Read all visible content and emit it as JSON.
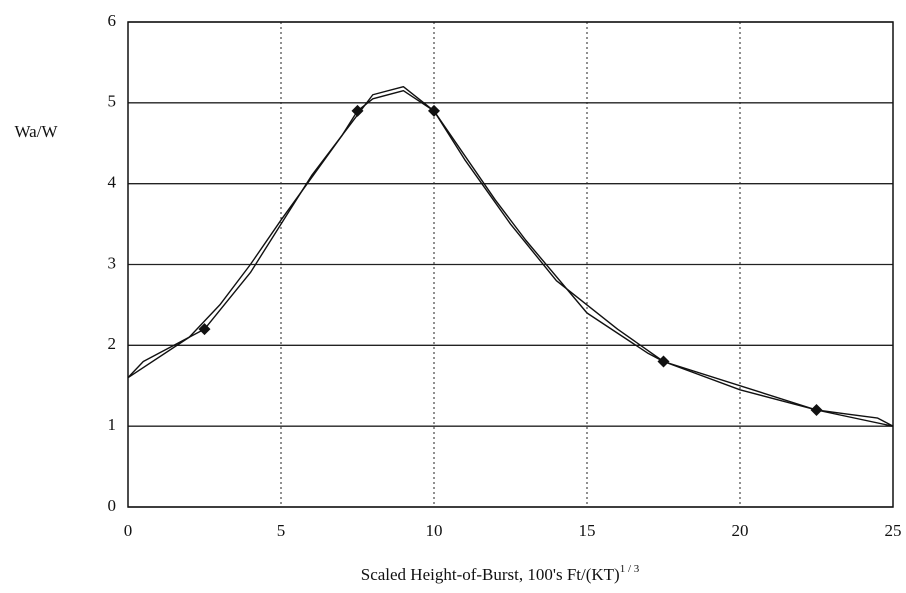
{
  "chart_data": {
    "type": "line",
    "ylabel": "Wa/W",
    "xlabel": "Scaled Height-of-Burst, 100's Ft/(KT)",
    "xlabel_superscript": "1 / 3",
    "xlim": [
      0,
      25
    ],
    "ylim": [
      0,
      6
    ],
    "xticks": [
      0,
      5,
      10,
      15,
      20,
      25
    ],
    "yticks": [
      0,
      1,
      2,
      3,
      4,
      5,
      6
    ],
    "xgrid": "dotted",
    "ygrid": "solid",
    "series": [
      {
        "color": "#111111",
        "marker": "none",
        "x": [
          0,
          0.5,
          1,
          2.5,
          4,
          5,
          6,
          7,
          7.5,
          8,
          9,
          10,
          11,
          12.5,
          14,
          15,
          16,
          17.5,
          20,
          22.5,
          23.5,
          24.5,
          25
        ],
        "values": [
          1.6,
          1.8,
          1.9,
          2.2,
          2.9,
          3.5,
          4.1,
          4.6,
          4.9,
          5.05,
          5.15,
          4.9,
          4.3,
          3.5,
          2.8,
          2.5,
          2.2,
          1.8,
          1.45,
          1.2,
          1.15,
          1.1,
          1.0
        ]
      },
      {
        "color": "#111111",
        "marker": "none",
        "x": [
          0,
          2,
          3,
          4,
          5,
          7,
          8,
          9,
          10,
          12,
          13,
          15,
          17,
          17.5,
          22.5,
          25
        ],
        "values": [
          1.6,
          2.1,
          2.5,
          3.0,
          3.55,
          4.6,
          5.1,
          5.2,
          4.9,
          3.8,
          3.3,
          2.4,
          1.9,
          1.8,
          1.2,
          1.0
        ]
      },
      {
        "color": "#111111",
        "marker": "diamond",
        "x": [
          2.5,
          7.5,
          10,
          17.5,
          22.5
        ],
        "values": [
          2.2,
          4.9,
          4.9,
          1.8,
          1.2
        ]
      }
    ]
  }
}
